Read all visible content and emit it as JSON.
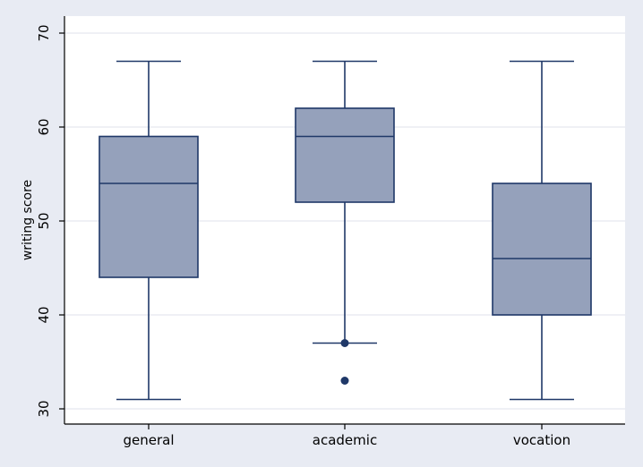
{
  "chart_data": {
    "type": "box",
    "title": "",
    "xlabel": "",
    "ylabel": "writing score",
    "ylim": [
      30,
      70
    ],
    "yticks": [
      30,
      40,
      50,
      60,
      70
    ],
    "grid": true,
    "categories": [
      "general",
      "academic",
      "vocation"
    ],
    "boxes": [
      {
        "category": "general",
        "whisker_low": 31,
        "q1": 44,
        "median": 54,
        "q3": 59,
        "whisker_high": 67,
        "outliers": []
      },
      {
        "category": "academic",
        "whisker_low": 37,
        "q1": 52,
        "median": 59,
        "q3": 62,
        "whisker_high": 67,
        "outliers": [
          37,
          33
        ]
      },
      {
        "category": "vocation",
        "whisker_low": 31,
        "q1": 40,
        "median": 46,
        "q3": 54,
        "whisker_high": 67,
        "outliers": []
      }
    ],
    "colors": {
      "box_fill": "#95a1bb",
      "line": "#1f3868",
      "marker": "#1f3868",
      "plot_bg": "#ffffff",
      "page_bg": "#e8ebf3",
      "grid": "#e5e8ef"
    }
  }
}
